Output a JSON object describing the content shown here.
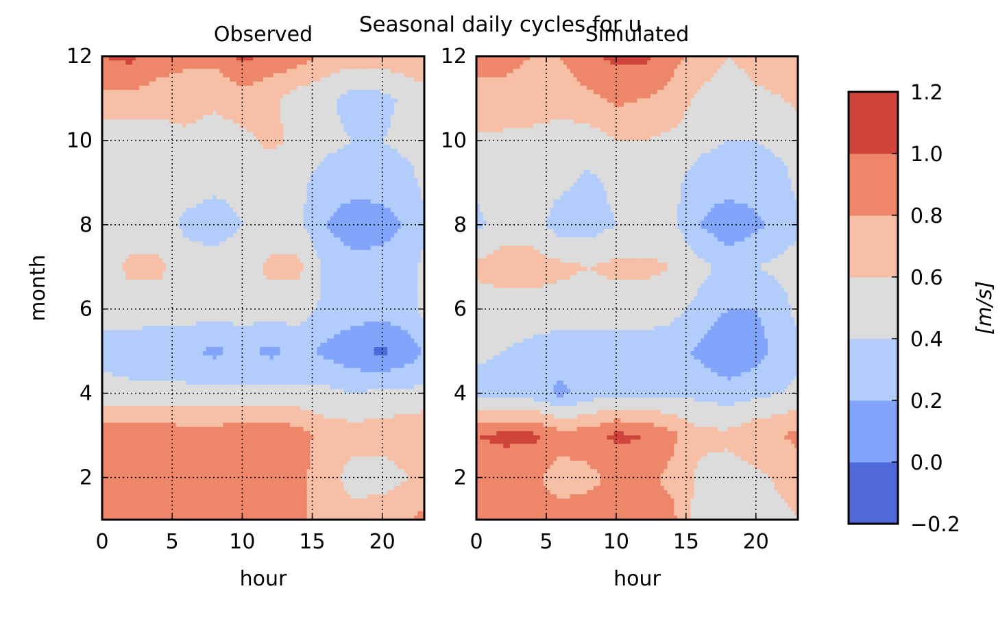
{
  "figure": {
    "title": "Seasonal daily cycles for u"
  },
  "colorbar": {
    "label": "[m/s]",
    "levels": [
      -0.2,
      0.0,
      0.2,
      0.4,
      0.6,
      0.8,
      1.0,
      1.2
    ],
    "tick_labels": [
      "−0.2",
      "0.0",
      "0.2",
      "0.4",
      "0.6",
      "0.8",
      "1.0",
      "1.2"
    ],
    "colors": [
      "#4f69d9",
      "#82a5fb",
      "#b2ccfb",
      "#dcdcdc",
      "#f6bfa6",
      "#ee8669",
      "#cf453c"
    ]
  },
  "chart_data": [
    {
      "type": "heatmap",
      "title": "Observed",
      "xlabel": "hour",
      "ylabel": "month",
      "xlim": [
        0,
        23
      ],
      "ylim": [
        1,
        12
      ],
      "xticks": [
        0,
        5,
        10,
        15,
        20
      ],
      "xtick_labels": [
        "0",
        "5",
        "10",
        "15",
        "20"
      ],
      "yticks": [
        2,
        4,
        6,
        8,
        10,
        12
      ],
      "ytick_labels": [
        "2",
        "4",
        "6",
        "8",
        "10",
        "12"
      ],
      "grid": true,
      "x": [
        0,
        2,
        4,
        6,
        8,
        10,
        12,
        14,
        16,
        18,
        20,
        22,
        23
      ],
      "y": [
        1,
        2,
        3,
        4,
        5,
        6,
        7,
        8,
        9,
        10,
        11,
        12
      ],
      "z": [
        [
          0.9,
          0.9,
          0.9,
          0.9,
          0.9,
          1.0,
          0.9,
          0.85,
          0.7,
          0.7,
          0.75,
          0.8,
          0.85
        ],
        [
          0.9,
          0.9,
          0.9,
          0.9,
          0.8,
          0.9,
          0.9,
          0.85,
          0.7,
          0.5,
          0.5,
          0.6,
          0.65
        ],
        [
          0.9,
          0.95,
          0.95,
          0.9,
          0.9,
          0.95,
          0.95,
          0.9,
          0.7,
          0.7,
          0.7,
          0.75,
          0.8
        ],
        [
          0.5,
          0.45,
          0.45,
          0.45,
          0.45,
          0.45,
          0.45,
          0.45,
          0.45,
          0.4,
          0.45,
          0.45,
          0.45
        ],
        [
          0.3,
          0.3,
          0.25,
          0.25,
          0.15,
          0.25,
          0.15,
          0.25,
          0.15,
          0.05,
          -0.05,
          0.1,
          0.2
        ],
        [
          0.5,
          0.5,
          0.5,
          0.5,
          0.5,
          0.5,
          0.5,
          0.5,
          0.35,
          0.3,
          0.3,
          0.35,
          0.45
        ],
        [
          0.5,
          0.65,
          0.65,
          0.5,
          0.5,
          0.5,
          0.65,
          0.65,
          0.35,
          0.3,
          0.3,
          0.35,
          0.45
        ],
        [
          0.4,
          0.5,
          0.5,
          0.35,
          0.3,
          0.4,
          0.45,
          0.45,
          0.2,
          0.05,
          0.1,
          0.25,
          0.35
        ],
        [
          0.45,
          0.45,
          0.5,
          0.5,
          0.45,
          0.45,
          0.45,
          0.45,
          0.3,
          0.3,
          0.3,
          0.35,
          0.45
        ],
        [
          0.45,
          0.45,
          0.5,
          0.55,
          0.5,
          0.55,
          0.65,
          0.55,
          0.45,
          0.4,
          0.4,
          0.45,
          0.5
        ],
        [
          0.75,
          0.75,
          0.7,
          0.7,
          0.65,
          0.7,
          0.65,
          0.5,
          0.45,
          0.3,
          0.35,
          0.45,
          0.5
        ],
        [
          1.0,
          1.05,
          0.9,
          0.85,
          0.85,
          1.05,
          0.95,
          0.9,
          0.75,
          0.7,
          0.7,
          0.75,
          0.8
        ]
      ]
    },
    {
      "type": "heatmap",
      "title": "Simulated",
      "xlabel": "hour",
      "ylabel": "",
      "xlim": [
        0,
        23
      ],
      "ylim": [
        1,
        12
      ],
      "xticks": [
        0,
        5,
        10,
        15,
        20
      ],
      "xtick_labels": [
        "0",
        "5",
        "10",
        "15",
        "20"
      ],
      "yticks": [
        2,
        4,
        6,
        8,
        10,
        12
      ],
      "ytick_labels": [
        "2",
        "4",
        "6",
        "8",
        "10",
        "12"
      ],
      "grid": true,
      "x": [
        0,
        2,
        4,
        6,
        8,
        10,
        12,
        14,
        16,
        18,
        20,
        22,
        23
      ],
      "y": [
        1,
        2,
        3,
        4,
        5,
        6,
        7,
        8,
        9,
        10,
        11,
        12
      ],
      "z": [
        [
          0.8,
          0.9,
          0.9,
          0.9,
          0.9,
          0.8,
          0.9,
          0.85,
          0.5,
          0.5,
          0.5,
          0.55,
          0.6
        ],
        [
          0.9,
          0.85,
          0.85,
          0.7,
          0.75,
          0.85,
          0.85,
          0.75,
          0.55,
          0.5,
          0.55,
          0.65,
          0.7
        ],
        [
          1.0,
          1.05,
          1.05,
          0.9,
          0.9,
          1.05,
          1.0,
          0.85,
          0.65,
          0.65,
          0.75,
          0.8,
          0.85
        ],
        [
          0.3,
          0.3,
          0.3,
          0.15,
          0.3,
          0.35,
          0.35,
          0.35,
          0.35,
          0.3,
          0.35,
          0.4,
          0.45
        ],
        [
          0.45,
          0.4,
          0.35,
          0.3,
          0.3,
          0.3,
          0.3,
          0.3,
          0.15,
          0.0,
          0.1,
          0.3,
          0.35
        ],
        [
          0.5,
          0.5,
          0.5,
          0.5,
          0.5,
          0.5,
          0.5,
          0.45,
          0.35,
          0.2,
          0.2,
          0.35,
          0.45
        ],
        [
          0.65,
          0.7,
          0.7,
          0.65,
          0.6,
          0.65,
          0.65,
          0.6,
          0.45,
          0.35,
          0.4,
          0.45,
          0.5
        ],
        [
          0.35,
          0.5,
          0.5,
          0.3,
          0.3,
          0.4,
          0.45,
          0.45,
          0.2,
          0.05,
          0.15,
          0.3,
          0.35
        ],
        [
          0.45,
          0.45,
          0.45,
          0.45,
          0.35,
          0.45,
          0.45,
          0.45,
          0.3,
          0.3,
          0.3,
          0.35,
          0.45
        ],
        [
          0.55,
          0.55,
          0.55,
          0.5,
          0.5,
          0.6,
          0.6,
          0.55,
          0.45,
          0.4,
          0.4,
          0.45,
          0.5
        ],
        [
          0.75,
          0.75,
          0.7,
          0.7,
          0.75,
          0.85,
          0.8,
          0.75,
          0.55,
          0.45,
          0.55,
          0.6,
          0.65
        ],
        [
          0.85,
          0.85,
          0.8,
          0.8,
          0.95,
          1.05,
          1.05,
          0.85,
          0.75,
          0.6,
          0.7,
          0.75,
          0.8
        ]
      ]
    }
  ]
}
